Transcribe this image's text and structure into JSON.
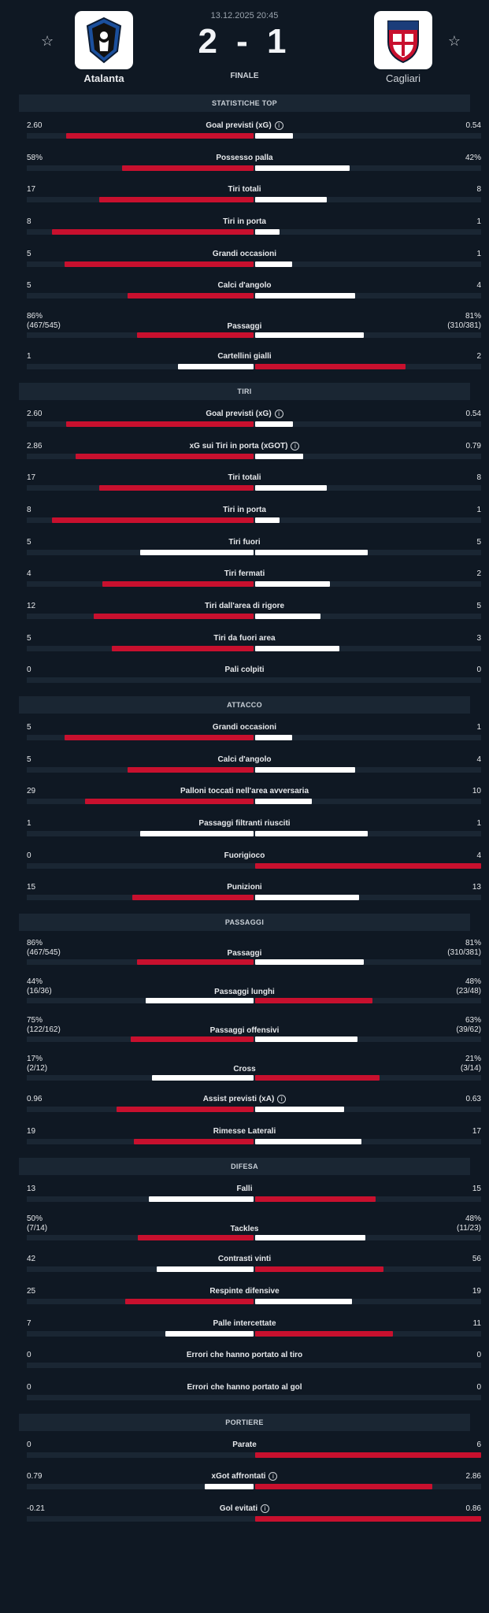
{
  "match": {
    "datetime": "13.12.2025 20:45",
    "score": "2 - 1",
    "status": "FINALE",
    "home": {
      "name": "Atalanta",
      "color": "#1b4f9c"
    },
    "away": {
      "name": "Cagliari",
      "color": "#c8102e"
    }
  },
  "colors": {
    "leader": "#c8102e",
    "trailer": "#ffffff",
    "track": "#1a2633",
    "background": "#0f1823"
  },
  "sections": [
    {
      "title": "STATISTICHE TOP",
      "rows": [
        {
          "label": "Goal previsti (xG)",
          "info": true,
          "home": "2.60",
          "away": "0.54",
          "hv": 2.6,
          "av": 0.54
        },
        {
          "label": "Possesso palla",
          "home": "58%",
          "away": "42%",
          "hv": 58,
          "av": 42
        },
        {
          "label": "Tiri totali",
          "home": "17",
          "away": "8",
          "hv": 17,
          "av": 8
        },
        {
          "label": "Tiri in porta",
          "home": "8",
          "away": "1",
          "hv": 8,
          "av": 1
        },
        {
          "label": "Grandi occasioni",
          "home": "5",
          "away": "1",
          "hv": 5,
          "av": 1
        },
        {
          "label": "Calci d'angolo",
          "home": "5",
          "away": "4",
          "hv": 5,
          "av": 4
        },
        {
          "label": "Passaggi",
          "home": "86%",
          "home_sub": "(467/545)",
          "away": "81%",
          "away_sub": "(310/381)",
          "hv": 86,
          "av": 81
        },
        {
          "label": "Cartellini gialli",
          "home": "1",
          "away": "2",
          "hv": 1,
          "av": 2
        }
      ]
    },
    {
      "title": "TIRI",
      "rows": [
        {
          "label": "Goal previsti (xG)",
          "info": true,
          "home": "2.60",
          "away": "0.54",
          "hv": 2.6,
          "av": 0.54
        },
        {
          "label": "xG sui Tiri in porta (xGOT)",
          "info": true,
          "home": "2.86",
          "away": "0.79",
          "hv": 2.86,
          "av": 0.79
        },
        {
          "label": "Tiri totali",
          "home": "17",
          "away": "8",
          "hv": 17,
          "av": 8
        },
        {
          "label": "Tiri in porta",
          "home": "8",
          "away": "1",
          "hv": 8,
          "av": 1
        },
        {
          "label": "Tiri fuori",
          "home": "5",
          "away": "5",
          "hv": 5,
          "av": 5
        },
        {
          "label": "Tiri fermati",
          "home": "4",
          "away": "2",
          "hv": 4,
          "av": 2
        },
        {
          "label": "Tiri dall'area di rigore",
          "home": "12",
          "away": "5",
          "hv": 12,
          "av": 5
        },
        {
          "label": "Tiri da fuori area",
          "home": "5",
          "away": "3",
          "hv": 5,
          "av": 3
        },
        {
          "label": "Pali colpiti",
          "home": "0",
          "away": "0",
          "hv": 0,
          "av": 0
        }
      ]
    },
    {
      "title": "ATTACCO",
      "rows": [
        {
          "label": "Grandi occasioni",
          "home": "5",
          "away": "1",
          "hv": 5,
          "av": 1
        },
        {
          "label": "Calci d'angolo",
          "home": "5",
          "away": "4",
          "hv": 5,
          "av": 4
        },
        {
          "label": "Palloni toccati nell'area avversaria",
          "home": "29",
          "away": "10",
          "hv": 29,
          "av": 10
        },
        {
          "label": "Passaggi filtranti riusciti",
          "home": "1",
          "away": "1",
          "hv": 1,
          "av": 1
        },
        {
          "label": "Fuorigioco",
          "home": "0",
          "away": "4",
          "hv": 0,
          "av": 4
        },
        {
          "label": "Punizioni",
          "home": "15",
          "away": "13",
          "hv": 15,
          "av": 13
        }
      ]
    },
    {
      "title": "PASSAGGI",
      "rows": [
        {
          "label": "Passaggi",
          "home": "86%",
          "home_sub": "(467/545)",
          "away": "81%",
          "away_sub": "(310/381)",
          "hv": 86,
          "av": 81
        },
        {
          "label": "Passaggi lunghi",
          "home": "44%",
          "home_sub": "(16/36)",
          "away": "48%",
          "away_sub": "(23/48)",
          "hv": 44,
          "av": 48
        },
        {
          "label": "Passaggi offensivi",
          "home": "75%",
          "home_sub": "(122/162)",
          "away": "63%",
          "away_sub": "(39/62)",
          "hv": 75,
          "av": 63
        },
        {
          "label": "Cross",
          "home": "17%",
          "home_sub": "(2/12)",
          "away": "21%",
          "away_sub": "(3/14)",
          "hv": 17,
          "av": 21
        },
        {
          "label": "Assist previsti (xA)",
          "info": true,
          "home": "0.96",
          "away": "0.63",
          "hv": 0.96,
          "av": 0.63
        },
        {
          "label": "Rimesse Laterali",
          "home": "19",
          "away": "17",
          "hv": 19,
          "av": 17
        }
      ]
    },
    {
      "title": "DIFESA",
      "rows": [
        {
          "label": "Falli",
          "home": "13",
          "away": "15",
          "hv": 13,
          "av": 15
        },
        {
          "label": "Tackles",
          "home": "50%",
          "home_sub": "(7/14)",
          "away": "48%",
          "away_sub": "(11/23)",
          "hv": 50,
          "av": 48
        },
        {
          "label": "Contrasti vinti",
          "home": "42",
          "away": "56",
          "hv": 42,
          "av": 56
        },
        {
          "label": "Respinte difensive",
          "home": "25",
          "away": "19",
          "hv": 25,
          "av": 19
        },
        {
          "label": "Palle intercettate",
          "home": "7",
          "away": "11",
          "hv": 7,
          "av": 11
        },
        {
          "label": "Errori che hanno portato al tiro",
          "home": "0",
          "away": "0",
          "hv": 0,
          "av": 0
        },
        {
          "label": "Errori che hanno portato al gol",
          "home": "0",
          "away": "0",
          "hv": 0,
          "av": 0
        }
      ]
    },
    {
      "title": "PORTIERE",
      "rows": [
        {
          "label": "Parate",
          "home": "0",
          "away": "6",
          "hv": 0,
          "av": 6
        },
        {
          "label": "xGot affrontati",
          "info": true,
          "home": "0.79",
          "away": "2.86",
          "hv": 0.79,
          "av": 2.86
        },
        {
          "label": "Gol evitati",
          "info": true,
          "home": "-0.21",
          "away": "0.86",
          "hv": -0.21,
          "av": 0.86
        }
      ]
    }
  ]
}
